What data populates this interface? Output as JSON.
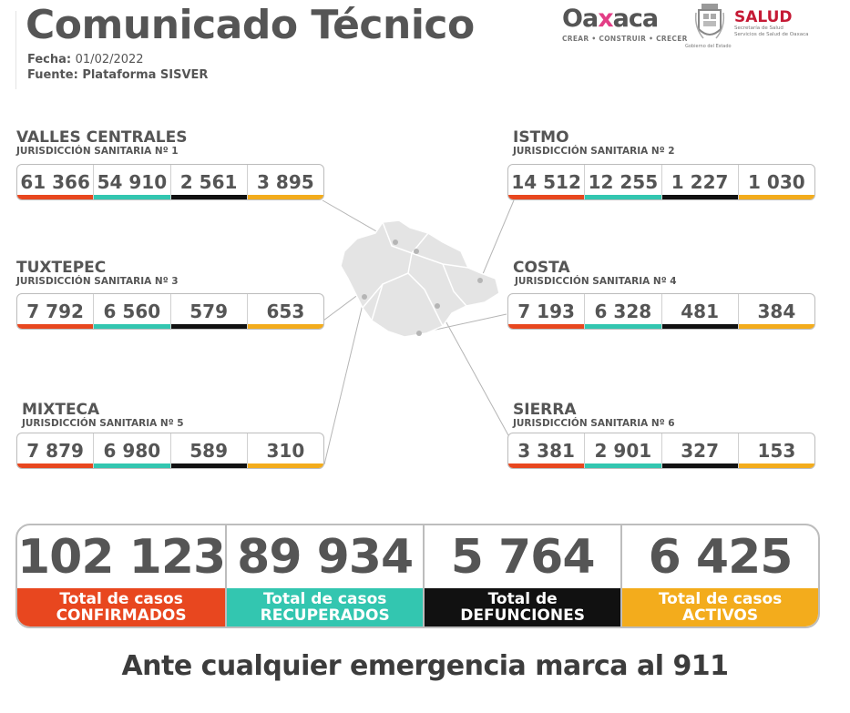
{
  "header": {
    "title": "Comunicado Técnico",
    "fecha_label": "Fecha:",
    "fecha_value": "01/02/2022",
    "fuente_label": "Fuente:",
    "fuente_value": "Plataforma SISVER"
  },
  "logos": {
    "oaxaca_prefix": "Oa",
    "oaxaca_x": "x",
    "oaxaca_suffix": "aca",
    "oaxaca_tagline": "CREAR • CONSTRUIR • CRECER",
    "gobierno": "Gobierno del Estado",
    "salud": "SALUD",
    "salud_sub1": "Secretaría de Salud",
    "salud_sub2": "Servicios de Salud de Oaxaca"
  },
  "colors": {
    "confirmados": "#e8471f",
    "recuperados": "#33c6b0",
    "defunciones": "#111111",
    "activos": "#f3ac1c"
  },
  "regions": [
    {
      "name": "VALLES CENTRALES",
      "sub": "JURISDICCIÓN SANITARIA Nº 1",
      "values": [
        "61 366",
        "54  910",
        "2 561",
        "3 895"
      ]
    },
    {
      "name": "ISTMO",
      "sub": "JURISDICCIÓN SANITARIA Nº 2",
      "values": [
        "14 512",
        "12 255",
        "1 227",
        "1 030"
      ]
    },
    {
      "name": "TUXTEPEC",
      "sub": "JURISDICCIÓN SANITARIA Nº 3",
      "values": [
        "7 792",
        "6 560",
        "579",
        "653"
      ]
    },
    {
      "name": "COSTA",
      "sub": "JURISDICCIÓN SANITARIA Nº 4",
      "values": [
        "7 193",
        "6 328",
        "481",
        "384"
      ]
    },
    {
      "name": "MIXTECA",
      "sub": "JURISDICCIÓN SANITARIA Nº 5",
      "values": [
        "7 879",
        "6 980",
        "589",
        "310"
      ]
    },
    {
      "name": "SIERRA",
      "sub": "JURISDICCIÓN SANITARIA Nº 6",
      "values": [
        "3 381",
        "2 901",
        "327",
        "153"
      ]
    }
  ],
  "totals": [
    {
      "value": "102 123",
      "line1": "Total de casos",
      "line2": "CONFIRMADOS"
    },
    {
      "value": "89 934",
      "line1": "Total de casos",
      "line2": "RECUPERADOS"
    },
    {
      "value": "5 764",
      "line1": "Total de",
      "line2": "DEFUNCIONES"
    },
    {
      "value": "6 425",
      "line1": "Total de casos",
      "line2": "ACTIVOS"
    }
  ],
  "footer": "Ante cualquier emergencia marca al 911"
}
